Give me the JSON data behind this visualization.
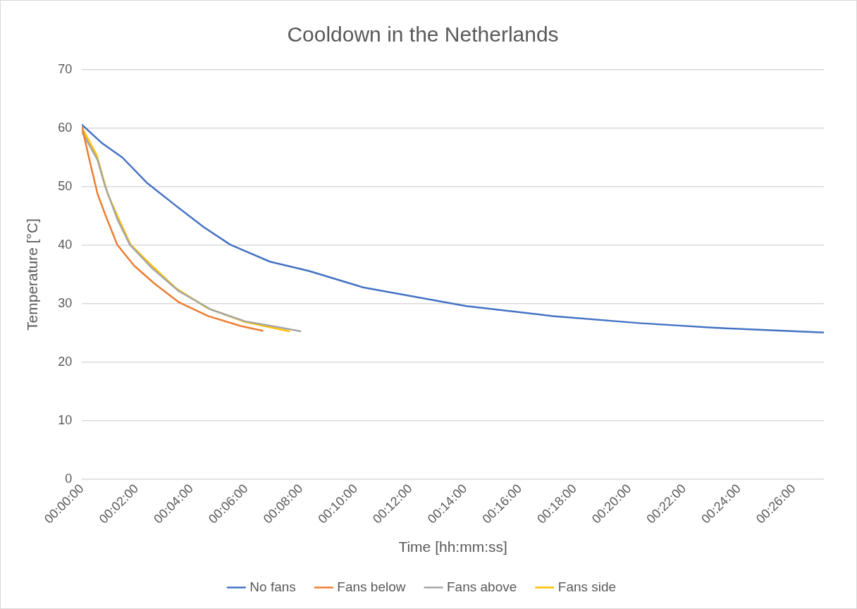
{
  "chart_data": {
    "type": "line",
    "title": "Cooldown in the Netherlands",
    "xlabel": "Time [hh:mm:ss]",
    "ylabel": "Temperature [°C]",
    "series": [
      {
        "name": "No fans",
        "color": "#4472c4",
        "x": [
          0,
          0.75,
          1.48,
          2.37,
          3.45,
          4.45,
          5.42,
          6.87,
          8.3,
          10.27,
          14.04,
          17.2,
          20.35,
          23.5,
          27.1
        ],
        "values": [
          60.6,
          57.4,
          55.0,
          50.7,
          46.7,
          43.1,
          40.1,
          37.2,
          35.6,
          32.8,
          29.6,
          27.9,
          26.7,
          25.8,
          25.1
        ]
      },
      {
        "name": "Fans below",
        "color": "#ed7d31",
        "x": [
          0,
          0.3,
          0.57,
          0.84,
          1.29,
          1.91,
          2.64,
          3.53,
          4.61,
          5.8,
          6.6
        ],
        "values": [
          60.3,
          54.1,
          48.8,
          45.4,
          40.1,
          36.5,
          33.5,
          30.3,
          27.9,
          26.2,
          25.4
        ]
      },
      {
        "name": "Fans above",
        "color": "#a5a5a5",
        "x": [
          0,
          0.57,
          0.84,
          1.29,
          1.75,
          2.56,
          3.53,
          4.72,
          5.96,
          7.3,
          7.98
        ],
        "values": [
          59.4,
          54.6,
          50.2,
          44.5,
          40.1,
          36.1,
          32.2,
          29.0,
          27.0,
          25.9,
          25.3
        ]
      },
      {
        "name": "Fans side",
        "color": "#ffc000",
        "x": [
          0,
          0.54,
          0.94,
          1.35,
          1.78,
          2.56,
          3.45,
          4.61,
          5.96,
          7.57
        ],
        "values": [
          60.1,
          55.4,
          48.8,
          44.5,
          40.1,
          36.5,
          32.6,
          29.2,
          26.9,
          25.3
        ]
      }
    ],
    "xlim": [
      0,
      27.1
    ],
    "xticks": [
      {
        "value": 0,
        "label": "00:00:00"
      },
      {
        "value": 2,
        "label": "00:02:00"
      },
      {
        "value": 4,
        "label": "00:04:00"
      },
      {
        "value": 6,
        "label": "00:06:00"
      },
      {
        "value": 8,
        "label": "00:08:00"
      },
      {
        "value": 10,
        "label": "00:10:00"
      },
      {
        "value": 12,
        "label": "00:12:00"
      },
      {
        "value": 14,
        "label": "00:14:00"
      },
      {
        "value": 16,
        "label": "00:16:00"
      },
      {
        "value": 18,
        "label": "00:18:00"
      },
      {
        "value": 20,
        "label": "00:20:00"
      },
      {
        "value": 22,
        "label": "00:22:00"
      },
      {
        "value": 24,
        "label": "00:24:00"
      },
      {
        "value": 26,
        "label": "00:26:00"
      }
    ],
    "ylim": [
      0,
      70
    ],
    "yticks": [
      0,
      10,
      20,
      30,
      40,
      50,
      60,
      70
    ],
    "grid": "y",
    "legend": "bottom",
    "marker": "none",
    "line_style": "solid"
  }
}
